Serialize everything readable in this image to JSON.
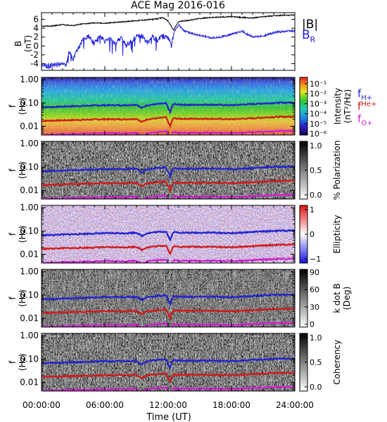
{
  "chart_data": {
    "type": "spectrogram",
    "title": "ACE Mag 2016-016",
    "time_axis": {
      "label": "Time (UT)",
      "ticks": [
        "00:00:00",
        "06:00:00",
        "12:00:00",
        "18:00:00",
        "24:00:00"
      ],
      "range_hours": [
        0,
        24
      ]
    },
    "panels": [
      {
        "type": "line",
        "ylabel": "B",
        "yunit": "(nT)",
        "ylim": [
          -5.5,
          7.5
        ],
        "yticks": [
          "6",
          "4",
          "2",
          "0",
          "-2",
          "-4"
        ],
        "ytick_values": [
          6,
          4,
          2,
          0,
          -2,
          -4
        ],
        "series": [
          {
            "name": "|B|",
            "color": "#000000",
            "x": [
              0,
              1,
              2,
              3,
              4,
              5,
              6,
              7,
              8,
              9,
              10,
              11,
              11.5,
              12,
              12.5,
              13,
              14,
              15,
              16,
              17,
              18,
              19,
              20,
              21,
              22,
              23,
              24
            ],
            "values": [
              4.4,
              4.5,
              4.8,
              4.6,
              5.0,
              5.2,
              5.1,
              5.3,
              5.5,
              5.7,
              5.9,
              6.1,
              6.4,
              5.6,
              3.6,
              5.5,
              5.8,
              6.2,
              6.4,
              6.5,
              6.6,
              6.4,
              6.3,
              6.6,
              6.8,
              6.9,
              7.0
            ]
          },
          {
            "name": "B_R",
            "color": "#2020e0",
            "x": [
              0,
              0.5,
              1,
              1.5,
              2,
              2.3,
              2.6,
              3,
              3.5,
              4,
              4.5,
              5,
              5.5,
              6,
              6.5,
              7,
              7.5,
              8,
              8.5,
              9,
              9.5,
              10,
              10.5,
              11,
              11.5,
              12,
              12.3,
              12.6,
              13,
              13.5,
              14,
              15,
              16,
              17,
              18,
              19,
              20,
              21,
              22,
              23,
              24
            ],
            "values": [
              -4.4,
              -4.6,
              -4.4,
              -4.2,
              -4.0,
              -4.6,
              -1.5,
              -3.0,
              -0.5,
              1.8,
              2.2,
              0.5,
              2.4,
              1.0,
              1.5,
              0.4,
              1.8,
              0.2,
              1.0,
              2.2,
              2.3,
              0.8,
              2.0,
              1.4,
              2.2,
              1.8,
              0.1,
              3.4,
              4.8,
              3.4,
              3.0,
              2.4,
              1.8,
              2.0,
              2.6,
              3.3,
              2.0,
              2.2,
              3.0,
              3.3,
              3.4
            ]
          }
        ]
      },
      {
        "type": "heatmap",
        "ylabel": "f",
        "yunit": "(Hz)",
        "yticks": [
          "1.00",
          "0.10",
          "0.01"
        ],
        "colorbar": {
          "label": "Intensity",
          "unit": "(nT²/Hz)",
          "scale": "log",
          "ticks": [
            "10⁻¹",
            "10⁻²",
            "10⁻³",
            "10⁻⁴",
            "10⁻⁵",
            "10⁻⁶"
          ]
        },
        "legend": [
          {
            "name": "f_H+",
            "main": "f",
            "sub": "H+",
            "color": "#2222d0"
          },
          {
            "name": "f_He+",
            "main": "f",
            "sub": "He+",
            "color": "#d01a1a"
          },
          {
            "name": "f_O+",
            "main": "f",
            "sub": "O+",
            "color": "#d020d0"
          }
        ]
      },
      {
        "type": "heatmap",
        "ylabel": "f",
        "yunit": "(Hz)",
        "yticks": [
          "1.00",
          "0.10",
          "0.01"
        ],
        "colorbar": {
          "label": "% Polarization",
          "unit": "",
          "ticks": [
            "1.0",
            "0.5",
            "0.0"
          ]
        }
      },
      {
        "type": "heatmap",
        "ylabel": "f",
        "yunit": "(Hz)",
        "yticks": [
          "1.00",
          "0.10",
          "0.01"
        ],
        "colorbar": {
          "label": "Ellipticity",
          "unit": "",
          "ticks": [
            "1",
            "0",
            "−1"
          ]
        }
      },
      {
        "type": "heatmap",
        "ylabel": "f",
        "yunit": "(Hz)",
        "yticks": [
          "1.00",
          "0.10",
          "0.01"
        ],
        "colorbar": {
          "label": "k dot B",
          "unit": "(Deg)",
          "ticks": [
            "90",
            "60",
            "30",
            "0"
          ]
        }
      },
      {
        "type": "heatmap",
        "ylabel": "f",
        "yunit": "(Hz)",
        "yticks": [
          "1.00",
          "0.10",
          "0.01"
        ],
        "colorbar": {
          "label": "Coherency",
          "unit": "",
          "ticks": [
            "1.0",
            "0.5",
            "0.0"
          ]
        }
      }
    ],
    "gyrofrequency_lines_hz": {
      "x": [
        0,
        2,
        4,
        6,
        8,
        9,
        9.5,
        10,
        11,
        11.8,
        12,
        12.2,
        12.5,
        13,
        14,
        16,
        18,
        20,
        22,
        24
      ],
      "f_H+": [
        0.065,
        0.07,
        0.075,
        0.08,
        0.08,
        0.085,
        0.06,
        0.08,
        0.09,
        0.095,
        0.06,
        0.04,
        0.09,
        0.085,
        0.083,
        0.085,
        0.08,
        0.09,
        0.1,
        0.105
      ],
      "f_He+": [
        0.017,
        0.018,
        0.019,
        0.02,
        0.02,
        0.021,
        0.015,
        0.02,
        0.022,
        0.024,
        0.015,
        0.01,
        0.022,
        0.021,
        0.021,
        0.021,
        0.02,
        0.022,
        0.025,
        0.026
      ],
      "f_O+": [
        0.0042,
        0.0045,
        0.0048,
        0.005,
        0.005,
        0.0053,
        0.0038,
        0.005,
        0.0056,
        0.006,
        0.0038,
        0.0025,
        0.0056,
        0.0053,
        0.0052,
        0.0053,
        0.005,
        0.0056,
        0.0062,
        0.0065
      ]
    }
  }
}
